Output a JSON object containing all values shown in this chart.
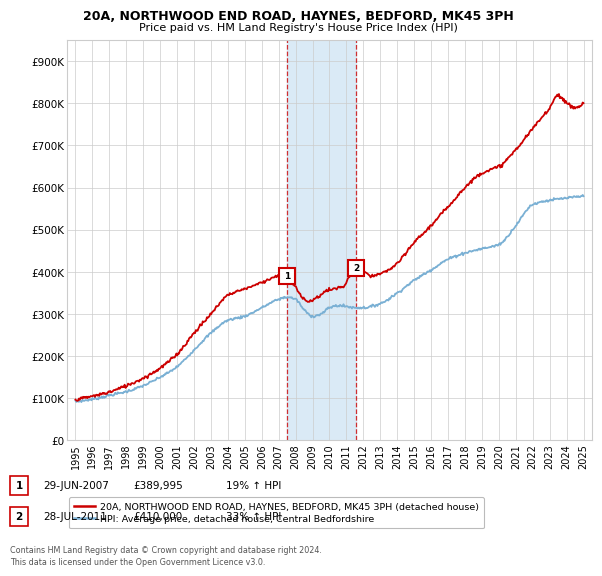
{
  "title": "20A, NORTHWOOD END ROAD, HAYNES, BEDFORD, MK45 3PH",
  "subtitle": "Price paid vs. HM Land Registry's House Price Index (HPI)",
  "xlim_start": 1994.5,
  "xlim_end": 2025.5,
  "ylim": [
    0,
    950000
  ],
  "yticks": [
    0,
    100000,
    200000,
    300000,
    400000,
    500000,
    600000,
    700000,
    800000,
    900000
  ],
  "ytick_labels": [
    "£0",
    "£100K",
    "£200K",
    "£300K",
    "£400K",
    "£500K",
    "£600K",
    "£700K",
    "£800K",
    "£900K"
  ],
  "sale1_x": 2007.49,
  "sale1_y": 389995,
  "sale1_label": "1",
  "sale1_date": "29-JUN-2007",
  "sale1_price": "£389,995",
  "sale1_hpi": "19% ↑ HPI",
  "sale2_x": 2011.57,
  "sale2_y": 410000,
  "sale2_label": "2",
  "sale2_date": "28-JUL-2011",
  "sale2_price": "£410,000",
  "sale2_hpi": "33% ↑ HPI",
  "legend_line1": "20A, NORTHWOOD END ROAD, HAYNES, BEDFORD, MK45 3PH (detached house)",
  "legend_line2": "HPI: Average price, detached house, Central Bedfordshire",
  "footer": "Contains HM Land Registry data © Crown copyright and database right 2024.\nThis data is licensed under the Open Government Licence v3.0.",
  "line_red": "#cc0000",
  "line_blue": "#7ab0d4",
  "shade_blue": "#daeaf6",
  "background": "#ffffff",
  "grid_color": "#cccccc",
  "xticks": [
    1995,
    1996,
    1997,
    1998,
    1999,
    2000,
    2001,
    2002,
    2003,
    2004,
    2005,
    2006,
    2007,
    2008,
    2009,
    2010,
    2011,
    2012,
    2013,
    2014,
    2015,
    2016,
    2017,
    2018,
    2019,
    2020,
    2021,
    2022,
    2023,
    2024,
    2025
  ],
  "hpi_points": [
    [
      1995.0,
      92000
    ],
    [
      1996.0,
      98000
    ],
    [
      1997.0,
      107000
    ],
    [
      1998.0,
      116000
    ],
    [
      1999.0,
      130000
    ],
    [
      2000.0,
      150000
    ],
    [
      2001.0,
      175000
    ],
    [
      2002.0,
      215000
    ],
    [
      2003.0,
      255000
    ],
    [
      2004.0,
      285000
    ],
    [
      2005.0,
      295000
    ],
    [
      2006.0,
      315000
    ],
    [
      2007.0,
      335000
    ],
    [
      2007.5,
      340000
    ],
    [
      2008.0,
      335000
    ],
    [
      2008.5,
      310000
    ],
    [
      2009.0,
      295000
    ],
    [
      2009.5,
      300000
    ],
    [
      2010.0,
      315000
    ],
    [
      2010.5,
      320000
    ],
    [
      2011.0,
      318000
    ],
    [
      2011.5,
      315000
    ],
    [
      2012.0,
      315000
    ],
    [
      2013.0,
      325000
    ],
    [
      2014.0,
      350000
    ],
    [
      2015.0,
      380000
    ],
    [
      2016.0,
      405000
    ],
    [
      2017.0,
      430000
    ],
    [
      2018.0,
      445000
    ],
    [
      2019.0,
      455000
    ],
    [
      2020.0,
      465000
    ],
    [
      2021.0,
      510000
    ],
    [
      2022.0,
      560000
    ],
    [
      2023.0,
      570000
    ],
    [
      2024.0,
      575000
    ],
    [
      2025.0,
      580000
    ]
  ],
  "red_points": [
    [
      1995.0,
      97000
    ],
    [
      1996.0,
      105000
    ],
    [
      1997.0,
      115000
    ],
    [
      1998.0,
      130000
    ],
    [
      1999.0,
      148000
    ],
    [
      2000.0,
      172000
    ],
    [
      2001.0,
      205000
    ],
    [
      2002.0,
      255000
    ],
    [
      2003.0,
      300000
    ],
    [
      2004.0,
      345000
    ],
    [
      2005.0,
      360000
    ],
    [
      2006.0,
      375000
    ],
    [
      2007.0,
      390000
    ],
    [
      2007.49,
      390000
    ],
    [
      2007.8,
      375000
    ],
    [
      2008.3,
      345000
    ],
    [
      2008.8,
      330000
    ],
    [
      2009.3,
      340000
    ],
    [
      2009.8,
      355000
    ],
    [
      2010.3,
      360000
    ],
    [
      2010.8,
      365000
    ],
    [
      2011.57,
      410000
    ],
    [
      2012.0,
      400000
    ],
    [
      2012.5,
      390000
    ],
    [
      2013.0,
      395000
    ],
    [
      2014.0,
      420000
    ],
    [
      2015.0,
      470000
    ],
    [
      2016.0,
      510000
    ],
    [
      2017.0,
      555000
    ],
    [
      2018.0,
      600000
    ],
    [
      2019.0,
      635000
    ],
    [
      2020.0,
      650000
    ],
    [
      2021.0,
      690000
    ],
    [
      2022.0,
      740000
    ],
    [
      2023.0,
      790000
    ],
    [
      2023.5,
      820000
    ],
    [
      2024.0,
      800000
    ],
    [
      2024.5,
      790000
    ],
    [
      2025.0,
      800000
    ]
  ]
}
